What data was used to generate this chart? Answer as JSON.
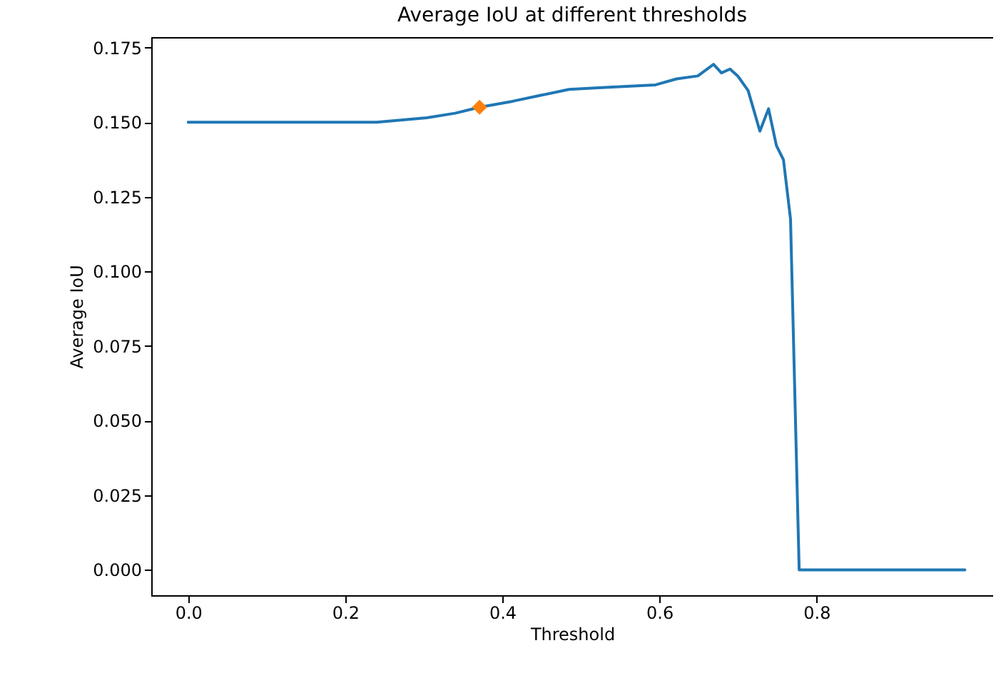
{
  "chart_data": {
    "type": "line",
    "title": "Average IoU at different thresholds",
    "xlabel": "Threshold",
    "ylabel": "Average IoU",
    "xlim": [
      -0.047,
      1.025
    ],
    "ylim": [
      -0.0085,
      0.1785
    ],
    "xticks": [
      {
        "value": 0,
        "label": "0.0"
      },
      0.2,
      0.4,
      0.6,
      0.8
    ],
    "yticks": [
      {
        "value": 0,
        "label": "0.000"
      },
      0.025,
      {
        "value": 0.05,
        "label": "0.050"
      },
      0.075,
      {
        "value": 0.1,
        "label": "0.100"
      },
      0.125,
      {
        "value": 0.15,
        "label": "0.150"
      },
      0.175
    ],
    "grid": false,
    "series": [
      {
        "type": "line",
        "color": "#1f77b4",
        "marker": "none",
        "line_style": "solid",
        "x": [
          0,
          0.12,
          0.24,
          0.304,
          0.34,
          0.371,
          0.413,
          0.449,
          0.485,
          0.522,
          0.558,
          0.595,
          0.622,
          0.649,
          0.669,
          0.679,
          0.69,
          0.7,
          0.713,
          0.728,
          0.739,
          0.749,
          0.758,
          0.767,
          0.778,
          0.989
        ],
        "values": [
          0.15,
          0.15,
          0.15,
          0.1515,
          0.153,
          0.155,
          0.157,
          0.159,
          0.161,
          0.1615,
          0.162,
          0.1625,
          0.1645,
          0.1655,
          0.1694,
          0.1665,
          0.1678,
          0.1654,
          0.1606,
          0.147,
          0.1545,
          0.1422,
          0.1374,
          0.1175,
          0,
          0
        ]
      },
      {
        "type": "scatter",
        "color": "#ff7f0e",
        "marker": "diamond",
        "x": [
          0.371
        ],
        "values": [
          0.155
        ]
      }
    ]
  }
}
